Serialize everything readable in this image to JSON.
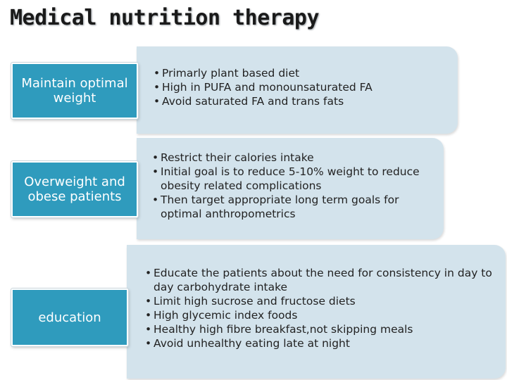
{
  "title": "Medical nutrition therapy",
  "rows": [
    {
      "label": "Maintain optimal weight",
      "bullets": [
        "Primarly plant based diet",
        "High in PUFA and monounsaturated FA",
        "Avoid saturated FA and trans fats"
      ]
    },
    {
      "label": "Overweight and obese patients",
      "bullets": [
        "Restrict their calories intake",
        "Initial goal is to reduce 5-10% weight to reduce obesity related complications",
        "Then target appropriate long term goals for optimal anthropometrics"
      ]
    },
    {
      "label": "education",
      "bullets": [
        "Educate the patients about the need for consistency in day to day carbohydrate intake",
        "Limit high sucrose and fructose diets",
        "High glycemic index foods",
        "Healthy high fibre breakfast,not skipping meals",
        "Avoid unhealthy eating late at night"
      ]
    }
  ],
  "colors": {
    "label_bg": "#2f9bbd",
    "panel_bg": "#d3e3ec"
  }
}
